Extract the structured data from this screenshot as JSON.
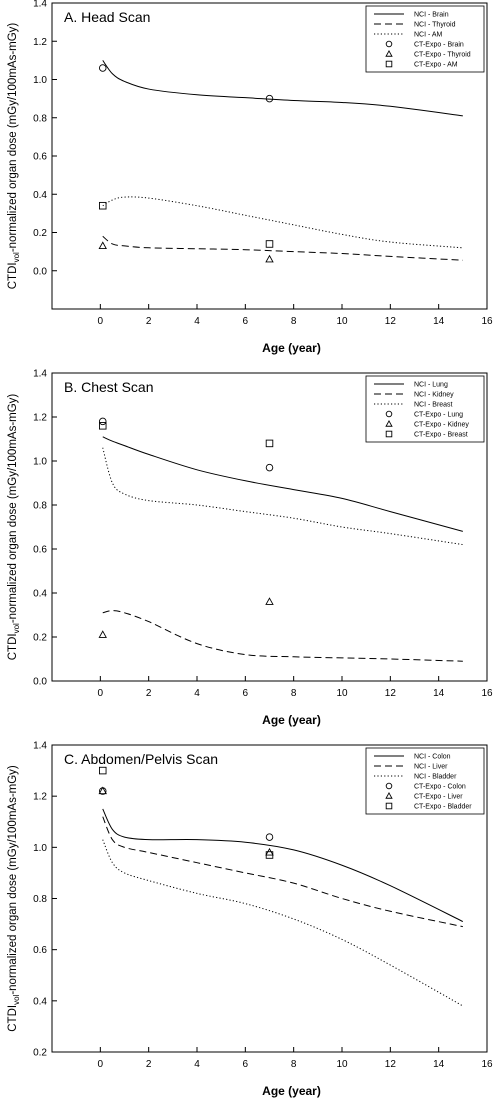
{
  "chart_data": [
    {
      "type": "line",
      "title": "A. Head Scan",
      "x_label": "Age (year)",
      "y_label_main": "CTDI",
      "y_label_sub": "vol",
      "y_label_rest": "-normalized organ dose (mGy/100mAs-mGy)",
      "x": [
        0.1,
        0.5,
        1,
        2,
        4,
        6,
        8,
        10,
        12,
        15
      ],
      "xlim": [
        -2,
        16
      ],
      "xticks": [
        0,
        2,
        4,
        6,
        8,
        10,
        12,
        14,
        16
      ],
      "ylim": [
        -0.2,
        1.4
      ],
      "yticks": [
        {
          "value": 0,
          "label": "0.0"
        },
        {
          "value": 0.2,
          "label": "0.2"
        },
        {
          "value": 0.4,
          "label": "0.4"
        },
        {
          "value": 0.6,
          "label": "0.6"
        },
        {
          "value": 0.8,
          "label": "0.8"
        },
        {
          "value": 1,
          "label": "1.0"
        },
        {
          "value": 1.2,
          "label": "1.2"
        },
        {
          "value": 1.4,
          "label": "1.4"
        }
      ],
      "legend": "upper right",
      "series": [
        {
          "name": "NCI - Brain",
          "style": "solid",
          "color": "#000000",
          "values": [
            1.1,
            1.03,
            0.99,
            0.95,
            0.92,
            0.905,
            0.89,
            0.88,
            0.86,
            0.81
          ]
        },
        {
          "name": "NCI - Thyroid",
          "style": "dashed",
          "color": "#000000",
          "values": [
            0.18,
            0.14,
            0.13,
            0.12,
            0.115,
            0.11,
            0.1,
            0.09,
            0.075,
            0.055
          ]
        },
        {
          "name": "NCI - AM",
          "style": "dotted",
          "color": "#000000",
          "values": [
            0.34,
            0.37,
            0.385,
            0.38,
            0.34,
            0.29,
            0.24,
            0.19,
            0.15,
            0.12
          ]
        },
        {
          "name": "CT-Expo - Brain",
          "marker": "circle",
          "color": "#000000",
          "x": [
            0.1,
            7
          ],
          "values": [
            1.06,
            0.9
          ]
        },
        {
          "name": "CT-Expo - Thyroid",
          "marker": "triangle",
          "color": "#000000",
          "x": [
            0.1,
            7
          ],
          "values": [
            0.13,
            0.06
          ]
        },
        {
          "name": "CT-Expo - AM",
          "marker": "square",
          "color": "#000000",
          "x": [
            0.1,
            7
          ],
          "values": [
            0.34,
            0.14
          ]
        }
      ]
    },
    {
      "type": "line",
      "title": "B. Chest Scan",
      "x_label": "Age (year)",
      "y_label_main": "CTDI",
      "y_label_sub": "vol",
      "y_label_rest": "-normalized organ dose (mGy/100mAs-mGy)",
      "x": [
        0.1,
        0.5,
        1,
        2,
        4,
        6,
        8,
        10,
        12,
        15
      ],
      "xlim": [
        -2,
        16
      ],
      "xticks": [
        0,
        2,
        4,
        6,
        8,
        10,
        12,
        14,
        16
      ],
      "ylim": [
        0,
        1.4
      ],
      "yticks": [
        {
          "value": 0,
          "label": "0.0"
        },
        {
          "value": 0.2,
          "label": "0.2"
        },
        {
          "value": 0.4,
          "label": "0.4"
        },
        {
          "value": 0.6,
          "label": "0.6"
        },
        {
          "value": 0.8,
          "label": "0.8"
        },
        {
          "value": 1,
          "label": "1.0"
        },
        {
          "value": 1.2,
          "label": "1.2"
        },
        {
          "value": 1.4,
          "label": "1.4"
        }
      ],
      "legend": "upper right",
      "series": [
        {
          "name": "NCI - Lung",
          "style": "solid",
          "color": "#000000",
          "values": [
            1.11,
            1.09,
            1.07,
            1.03,
            0.96,
            0.91,
            0.87,
            0.83,
            0.77,
            0.68
          ]
        },
        {
          "name": "NCI - Kidney",
          "style": "dashed",
          "color": "#000000",
          "values": [
            0.31,
            0.32,
            0.31,
            0.27,
            0.17,
            0.12,
            0.11,
            0.105,
            0.1,
            0.09
          ]
        },
        {
          "name": "NCI - Breast",
          "style": "dotted",
          "color": "#000000",
          "values": [
            1.06,
            0.9,
            0.85,
            0.82,
            0.8,
            0.77,
            0.74,
            0.7,
            0.67,
            0.62
          ]
        },
        {
          "name": "CT-Expo - Lung",
          "marker": "circle",
          "color": "#000000",
          "x": [
            0.1,
            7
          ],
          "values": [
            1.18,
            0.97
          ]
        },
        {
          "name": "CT-Expo - Kidney",
          "marker": "triangle",
          "color": "#000000",
          "x": [
            0.1,
            7
          ],
          "values": [
            0.21,
            0.36
          ]
        },
        {
          "name": "CT-Expo - Breast",
          "marker": "square",
          "color": "#000000",
          "x": [
            0.1,
            7
          ],
          "values": [
            1.16,
            1.08
          ]
        }
      ]
    },
    {
      "type": "line",
      "title": "C. Abdomen/Pelvis Scan",
      "x_label": "Age (year)",
      "y_label_main": "CTDI",
      "y_label_sub": "vol",
      "y_label_rest": "-normalized organ dose (mGy/100mAs-mGy)",
      "x": [
        0.1,
        0.5,
        1,
        2,
        4,
        6,
        8,
        10,
        12,
        15
      ],
      "xlim": [
        -2,
        16
      ],
      "xticks": [
        0,
        2,
        4,
        6,
        8,
        10,
        12,
        14,
        16
      ],
      "ylim": [
        0.2,
        1.4
      ],
      "yticks": [
        {
          "value": 0.2,
          "label": "0.2"
        },
        {
          "value": 0.4,
          "label": "0.4"
        },
        {
          "value": 0.6,
          "label": "0.6"
        },
        {
          "value": 0.8,
          "label": "0.8"
        },
        {
          "value": 1,
          "label": "1.0"
        },
        {
          "value": 1.2,
          "label": "1.2"
        },
        {
          "value": 1.4,
          "label": "1.4"
        }
      ],
      "legend": "upper right",
      "series": [
        {
          "name": "NCI - Colon",
          "style": "solid",
          "color": "#000000",
          "values": [
            1.15,
            1.07,
            1.04,
            1.03,
            1.03,
            1.02,
            0.99,
            0.93,
            0.85,
            0.71
          ]
        },
        {
          "name": "NCI - Liver",
          "style": "dashed",
          "color": "#000000",
          "values": [
            1.12,
            1.03,
            1.0,
            0.98,
            0.94,
            0.9,
            0.86,
            0.8,
            0.75,
            0.69
          ]
        },
        {
          "name": "NCI - Bladder",
          "style": "dotted",
          "color": "#000000",
          "values": [
            1.03,
            0.94,
            0.9,
            0.87,
            0.82,
            0.78,
            0.72,
            0.64,
            0.54,
            0.38
          ]
        },
        {
          "name": "CT-Expo - Colon",
          "marker": "circle",
          "color": "#000000",
          "x": [
            0.1,
            7
          ],
          "values": [
            1.22,
            1.04
          ]
        },
        {
          "name": "CT-Expo - Liver",
          "marker": "triangle",
          "color": "#000000",
          "x": [
            0.1,
            7
          ],
          "values": [
            1.22,
            0.98
          ]
        },
        {
          "name": "CT-Expo - Bladder",
          "marker": "square",
          "color": "#000000",
          "x": [
            0.1,
            7
          ],
          "values": [
            1.3,
            0.97
          ]
        }
      ]
    }
  ]
}
